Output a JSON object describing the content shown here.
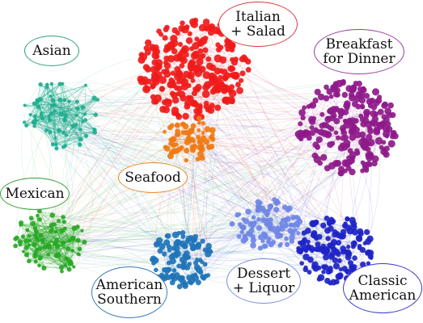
{
  "clusters": [
    {
      "id": "asian",
      "label": "Asian",
      "color": "#1fae8f",
      "border": "#2aa37f"
    },
    {
      "id": "italian",
      "label": "Italian\n+ Salad",
      "color": "#f01a1a",
      "border": "#e2363a"
    },
    {
      "id": "breakfast",
      "label": "Breakfast\nfor Dinner",
      "color": "#8e1a8a",
      "border": "#9a3aa0"
    },
    {
      "id": "seafood",
      "label": "Seafood",
      "color": "#f07a12",
      "border": "#e88a2e"
    },
    {
      "id": "mexican",
      "label": "Mexican",
      "color": "#28a825",
      "border": "#3aa03a"
    },
    {
      "id": "amsouth",
      "label": "American\nSouthern",
      "color": "#1f74b8",
      "border": "#3a7ac0"
    },
    {
      "id": "dessert",
      "label": "Dessert\n+ Liquor",
      "color": "#6f86e6",
      "border": "#7a8ee0"
    },
    {
      "id": "classic",
      "label": "Classic\nAmerican",
      "color": "#1d23c4",
      "border": "#3a3ac8"
    }
  ]
}
